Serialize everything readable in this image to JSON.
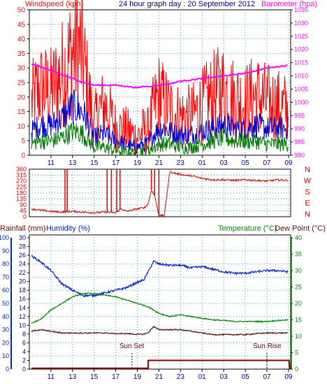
{
  "header": {
    "windspeed_label": "Windspeed (kph)",
    "title": "24 hour graph day : 20 September 2012",
    "barometer_label": "Barometer (hpa)"
  },
  "labels": {
    "rainfall": "Rainfall (mm)",
    "humidity": "Humidity (%)",
    "temperature": "Temperature (°C)",
    "dew_point": "Dew Point (°C)",
    "sun_set": "Sun Set",
    "sun_rise": "Sun Rise"
  },
  "colors": {
    "gust": "#ff0000",
    "wind_avg": "#0000cc",
    "wind_low": "#007700",
    "barometer": "#ff00ff",
    "direction": "#dd0000",
    "humidity": "#0022cc",
    "temperature": "#008800",
    "dew_point": "#551111",
    "rainfall": "#880000",
    "grid": "#4f9a9a"
  },
  "chart_data": [
    {
      "type": "line",
      "title": "24 hour graph day : 20 September 2012",
      "x_ticks": [
        "11",
        "13",
        "15",
        "17",
        "19",
        "21",
        "23",
        "01",
        "03",
        "05",
        "07",
        "09"
      ],
      "y_left_label": "Windspeed (kph)",
      "y_left_ticks": [
        "0",
        "5",
        "10",
        "15",
        "20",
        "25",
        "30",
        "35",
        "40",
        "45",
        "50"
      ],
      "ylim_left": [
        0,
        50
      ],
      "y_right_label": "Barometer (hpa)",
      "y_right_ticks": [
        "980",
        "985",
        "990",
        "995",
        "1000",
        "1005",
        "1010",
        "1015",
        "1020",
        "1025",
        "1030",
        "1035"
      ],
      "ylim_right": [
        980,
        1035
      ],
      "x_range_hours": [
        9,
        33.2
      ],
      "series": [
        {
          "key": "gust",
          "axis": "left",
          "x": [
            9.2,
            10,
            11,
            12,
            12.5,
            13,
            13.5,
            14,
            14.5,
            15,
            15.5,
            16,
            17,
            18,
            18.5,
            19,
            19.5,
            20,
            20.5,
            21,
            21.5,
            22,
            23,
            24,
            25,
            26,
            27,
            28,
            29,
            30,
            31,
            32,
            33
          ],
          "values": [
            14,
            18,
            17,
            22,
            25,
            28,
            30,
            26,
            16,
            8,
            12,
            13,
            7,
            6,
            5,
            4,
            6,
            6,
            12,
            16,
            14,
            12,
            10,
            10,
            13,
            16,
            18,
            15,
            14,
            16,
            14,
            13,
            12
          ]
        },
        {
          "key": "wind_avg",
          "axis": "left",
          "x": [
            9.2,
            10,
            11,
            12,
            12.5,
            13,
            13.5,
            14,
            14.5,
            15,
            15.5,
            16,
            17,
            18,
            18.5,
            19,
            19.5,
            20,
            20.5,
            21,
            21.5,
            22,
            23,
            24,
            25,
            26,
            27,
            28,
            29,
            30,
            31,
            32,
            33
          ],
          "values": [
            7,
            9,
            9,
            11,
            13,
            15,
            14,
            13,
            9,
            5,
            6,
            6,
            4,
            3,
            2,
            2,
            3,
            3,
            6,
            8,
            8,
            7,
            6,
            6,
            7,
            8,
            9,
            8,
            8,
            9,
            8,
            8,
            8
          ]
        },
        {
          "key": "wind_low",
          "axis": "left",
          "x": [
            9.2,
            10,
            11,
            12,
            12.5,
            13,
            13.5,
            14,
            14.5,
            15,
            15.5,
            16,
            17,
            18,
            18.5,
            19,
            19.5,
            20,
            20.5,
            21,
            21.5,
            22,
            23,
            24,
            25,
            26,
            27,
            28,
            29,
            30,
            31,
            32,
            33
          ],
          "values": [
            3,
            4,
            4,
            5,
            6,
            7,
            7,
            6,
            4,
            2,
            2,
            2,
            1,
            0.5,
            0.5,
            0.5,
            1,
            1,
            2,
            3,
            3,
            3,
            2,
            2,
            3,
            4,
            5,
            4,
            4,
            4,
            3,
            3,
            3
          ]
        },
        {
          "key": "barometer",
          "axis": "right",
          "x": [
            9.2,
            10,
            11,
            12,
            13,
            14,
            15,
            16,
            17,
            18,
            19,
            19.5,
            20,
            21,
            22,
            23,
            24,
            25,
            26,
            27,
            28,
            29,
            30,
            31,
            32,
            33
          ],
          "values": [
            1014.5,
            1013.5,
            1012,
            1010.5,
            1009,
            1007.5,
            1006.5,
            1006.5,
            1006.5,
            1006,
            1005.5,
            1006,
            1006,
            1006.5,
            1007,
            1008,
            1008.5,
            1009,
            1009.5,
            1010,
            1010.5,
            1011,
            1012,
            1013,
            1013.5,
            1014
          ]
        }
      ]
    },
    {
      "type": "line",
      "title": "",
      "x_ticks": [
        "11",
        "13",
        "15",
        "17",
        "19",
        "21",
        "23",
        "01",
        "03",
        "05",
        "07",
        "09"
      ],
      "y_left_ticks": [
        "0",
        "45",
        "90",
        "135",
        "180",
        "225",
        "270",
        "315",
        "360"
      ],
      "ylim": [
        0,
        360
      ],
      "compass_labels": [
        "N",
        "W",
        "S",
        "E",
        "N"
      ],
      "series": [
        {
          "key": "direction",
          "x": [
            9.2,
            10,
            11,
            12,
            13,
            14,
            15,
            16,
            17,
            17.5,
            18,
            19,
            19.7,
            20,
            20.3,
            20.6,
            21,
            21.2,
            21.5,
            22,
            23,
            24,
            25,
            26,
            27,
            28,
            29,
            30,
            31,
            32,
            33
          ],
          "values": [
            60,
            50,
            40,
            35,
            40,
            35,
            30,
            35,
            30,
            60,
            40,
            60,
            70,
            100,
            200,
            160,
            10,
            10,
            10,
            340,
            320,
            310,
            290,
            280,
            280,
            275,
            280,
            275,
            270,
            280,
            275
          ]
        }
      ],
      "spikes_to_360": [
        12.3,
        12.5,
        16.2,
        16.6,
        17.1,
        17.4,
        20.3,
        20.6,
        21.0
      ]
    },
    {
      "type": "line",
      "title": "",
      "x_ticks": [
        "11",
        "13",
        "15",
        "17",
        "19",
        "21",
        "23",
        "01",
        "03",
        "05",
        "07",
        "09"
      ],
      "y_outer_label": "Rainfall (mm)",
      "y_outer_ticks": [
        "0",
        "10",
        "20",
        "30",
        "40",
        "50",
        "60",
        "70",
        "80",
        "90",
        "100"
      ],
      "y_inner_label": "Humidity (%)",
      "y_inner_ticks": [
        "0",
        "2",
        "4",
        "6",
        "8",
        "10",
        "12",
        "14",
        "16",
        "18",
        "20",
        "22",
        "24",
        "26",
        "28",
        "30"
      ],
      "y_right_label": "Temperature (°C)",
      "y_right_ticks": [
        "0",
        "5",
        "10",
        "15",
        "20",
        "25",
        "30",
        "35",
        "40"
      ],
      "ylim_humidity": [
        0,
        100
      ],
      "ylim_temperature": [
        0,
        40
      ],
      "ylim_rainfall": [
        0,
        30
      ],
      "series": [
        {
          "key": "humidity",
          "axis": "humidity",
          "x": [
            9.2,
            10,
            11,
            12,
            13,
            14,
            15,
            16,
            17,
            18,
            19,
            19.6,
            20,
            20.5,
            21,
            22,
            23,
            24,
            25,
            26,
            27,
            28,
            29,
            30,
            31,
            32,
            33
          ],
          "values": [
            86,
            82,
            75,
            65,
            60,
            56,
            56,
            58,
            60,
            62,
            66,
            68,
            74,
            82,
            80,
            79,
            79,
            77,
            78,
            76,
            74,
            73,
            73,
            74,
            75,
            75,
            74
          ]
        },
        {
          "key": "temperature",
          "axis": "temperature",
          "x": [
            9.2,
            10,
            11,
            12,
            13,
            14,
            15,
            16,
            17,
            18,
            19,
            20,
            21,
            22,
            23,
            24,
            25,
            26,
            27,
            28,
            29,
            30,
            31,
            32,
            33
          ],
          "values": [
            14,
            15,
            18,
            20,
            22,
            23,
            23,
            22.5,
            22,
            21,
            20,
            19,
            17,
            16,
            16.5,
            16,
            15.5,
            15,
            14.8,
            14.5,
            14.5,
            14.5,
            14.5,
            14.8,
            15
          ]
        },
        {
          "key": "dew_point",
          "axis": "temperature",
          "x": [
            9.2,
            10,
            11,
            12,
            13,
            14,
            15,
            16,
            17,
            18,
            19,
            19.5,
            20,
            20.5,
            21,
            22,
            23,
            24,
            25,
            26,
            27,
            28,
            29,
            30,
            31,
            32,
            33
          ],
          "values": [
            11.5,
            12,
            11.5,
            11,
            11,
            11,
            11,
            11,
            10.8,
            10.8,
            10.6,
            10.6,
            11,
            13,
            12,
            12,
            12,
            11.5,
            11,
            10.5,
            10.5,
            10.5,
            10.5,
            10.8,
            11,
            11,
            11
          ]
        },
        {
          "key": "rainfall",
          "axis": "rainfall",
          "x": [
            9.2,
            20,
            20.01,
            33.05,
            33.1
          ],
          "values": [
            0.2,
            0.2,
            2.0,
            2.0,
            0
          ]
        }
      ],
      "events": [
        {
          "label": "Sun Set",
          "time": 18.5
        },
        {
          "label": "Sun Rise",
          "time": 31.0
        }
      ]
    }
  ]
}
